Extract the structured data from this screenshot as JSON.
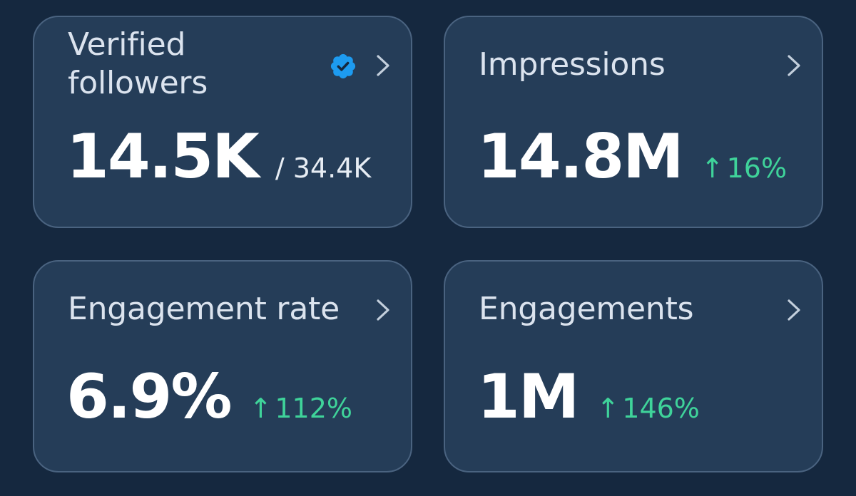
{
  "cards": {
    "verified_followers": {
      "title": "Verified followers",
      "value": "14.5K",
      "total": "/ 34.4K",
      "badge_icon": "verified-badge-icon"
    },
    "impressions": {
      "title": "Impressions",
      "value": "14.8M",
      "delta_arrow": "↑",
      "delta": "16%"
    },
    "engagement_rate": {
      "title": "Engagement rate",
      "value": "6.9%",
      "delta_arrow": "↑",
      "delta": "112%"
    },
    "engagements": {
      "title": "Engagements",
      "value": "1M",
      "delta_arrow": "↑",
      "delta": "146%"
    }
  },
  "icons": {
    "chevron": "chevron-right-icon",
    "badge": "verified-badge-icon"
  },
  "colors": {
    "background": "#15283f",
    "card": "#253d58",
    "card_border": "#4a6380",
    "positive": "#3fd39a",
    "badge": "#1d9bf0",
    "title_text": "#dbe3ee"
  }
}
